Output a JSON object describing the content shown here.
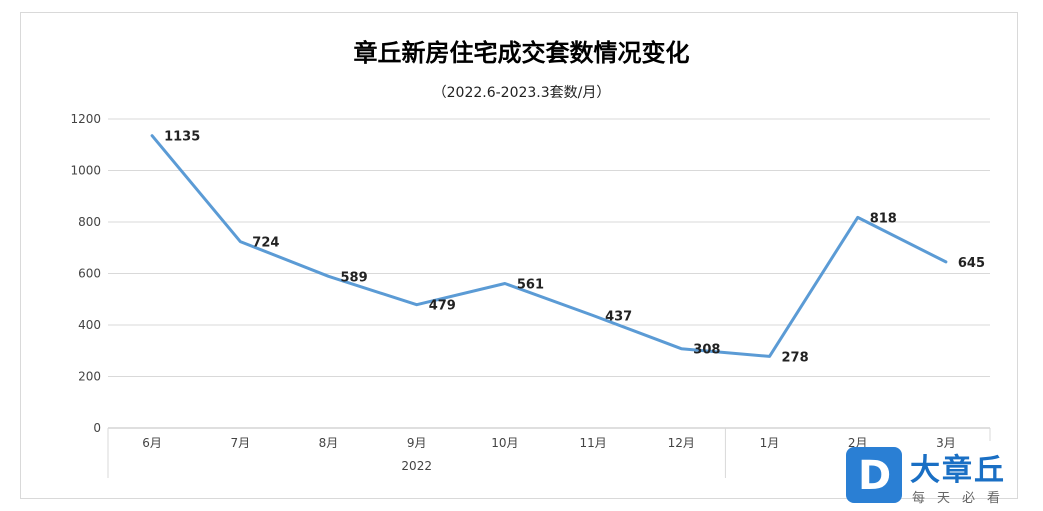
{
  "chart_data": {
    "type": "line",
    "title": "章丘新房住宅成交套数情况变化",
    "subtitle": "（2022.6-2023.3套数/月）",
    "categories": [
      "6月",
      "7月",
      "8月",
      "9月",
      "10月",
      "11月",
      "12月",
      "1月",
      "2月",
      "3月"
    ],
    "groups": [
      {
        "label": "2022",
        "count": 7
      },
      {
        "label": "",
        "count": 3
      }
    ],
    "series": [
      {
        "values": [
          1135,
          724,
          589,
          479,
          561,
          437,
          308,
          278,
          818,
          645
        ],
        "color": "#5b9bd5"
      }
    ],
    "ylim": [
      0,
      1200
    ],
    "yticks": [
      0,
      200,
      400,
      600,
      800,
      1000,
      1200
    ],
    "grid": true,
    "legend": "none"
  },
  "watermark": {
    "logo_letter": "D",
    "name": "大章丘",
    "tagline": "每天必看"
  }
}
